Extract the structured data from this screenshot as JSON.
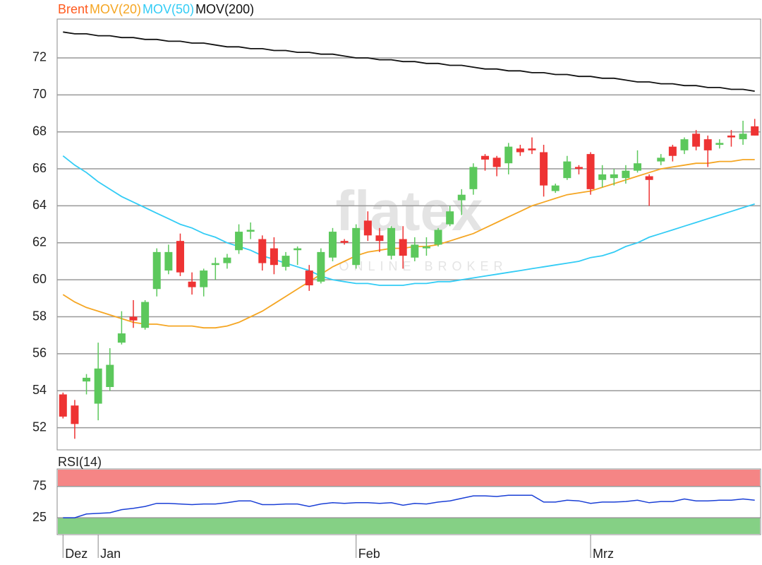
{
  "chart_data": [
    {
      "type": "candlestick",
      "name": "Brent",
      "name_color": "#ff5a1e",
      "up_color": "#5cc85c",
      "down_color": "#ee3333",
      "watermark": {
        "brand": "flatex",
        "tagline": "ONLINE BROKER"
      },
      "categories": [
        "Dez",
        null,
        null,
        "Jan",
        null,
        null,
        null,
        null,
        null,
        null,
        null,
        null,
        null,
        null,
        null,
        null,
        null,
        null,
        null,
        null,
        null,
        null,
        null,
        null,
        null,
        "Feb",
        null,
        null,
        null,
        null,
        null,
        null,
        null,
        null,
        null,
        null,
        null,
        null,
        null,
        null,
        null,
        null,
        null,
        null,
        null,
        "Mrz",
        null,
        null,
        null,
        null,
        null,
        null,
        null,
        null,
        null,
        null,
        null,
        null,
        null,
        null
      ],
      "open": [
        53.8,
        53.2,
        54.5,
        53.3,
        54.2,
        56.6,
        58.0,
        57.4,
        59.5,
        60.5,
        62.1,
        59.9,
        59.6,
        60.8,
        60.9,
        61.6,
        62.6,
        62.2,
        61.7,
        60.7,
        61.6,
        60.5,
        59.9,
        61.2,
        62.1,
        60.8,
        63.2,
        62.4,
        61.3,
        62.2,
        61.2,
        61.7,
        61.9,
        63.0,
        64.3,
        64.9,
        66.7,
        66.6,
        66.3,
        67.1,
        67.1,
        66.9,
        64.8,
        65.5,
        66.1,
        66.8,
        65.4,
        65.5,
        65.5,
        65.9,
        65.6,
        66.4,
        67.2,
        67.0,
        67.9,
        67.6,
        67.3,
        67.8,
        67.6,
        68.3
      ],
      "high": [
        53.9,
        53.5,
        54.9,
        56.6,
        56.3,
        58.3,
        58.9,
        58.9,
        61.7,
        61.9,
        62.5,
        60.4,
        60.6,
        61.2,
        61.4,
        63.0,
        63.1,
        62.4,
        62.3,
        61.5,
        61.8,
        60.8,
        61.7,
        62.8,
        62.2,
        63.0,
        63.7,
        62.8,
        62.9,
        62.9,
        62.3,
        62.3,
        62.8,
        64.0,
        64.9,
        66.3,
        66.8,
        66.7,
        67.4,
        67.3,
        67.7,
        67.3,
        65.2,
        66.7,
        66.2,
        66.9,
        66.2,
        66.0,
        66.2,
        67.0,
        65.7,
        66.8,
        67.3,
        67.7,
        68.1,
        67.8,
        67.6,
        68.1,
        68.6,
        68.7
      ],
      "low": [
        52.5,
        51.4,
        53.8,
        52.4,
        54.0,
        56.5,
        57.4,
        57.3,
        59.1,
        60.3,
        60.2,
        59.2,
        59.1,
        60.0,
        60.6,
        61.4,
        62.2,
        60.5,
        60.3,
        60.5,
        60.8,
        59.4,
        59.8,
        61.0,
        61.9,
        60.6,
        62.1,
        61.5,
        61.1,
        60.6,
        61.0,
        61.3,
        61.8,
        62.9,
        63.5,
        64.6,
        65.9,
        65.6,
        65.7,
        66.7,
        66.8,
        64.5,
        64.7,
        65.4,
        65.7,
        64.6,
        65.0,
        65.1,
        65.2,
        65.8,
        64.0,
        66.2,
        66.4,
        66.8,
        67.0,
        66.1,
        67.1,
        67.2,
        67.3,
        67.8
      ],
      "close": [
        52.6,
        52.2,
        54.7,
        55.2,
        55.4,
        57.1,
        57.8,
        58.8,
        61.5,
        61.5,
        60.4,
        59.6,
        60.5,
        60.9,
        61.2,
        62.6,
        62.7,
        60.9,
        60.8,
        61.3,
        61.7,
        59.7,
        61.5,
        62.6,
        62.0,
        62.8,
        62.4,
        62.1,
        62.8,
        61.3,
        61.9,
        61.8,
        62.7,
        63.7,
        64.6,
        66.1,
        66.5,
        66.1,
        67.2,
        66.9,
        67.0,
        65.1,
        65.1,
        66.4,
        66.0,
        64.9,
        65.7,
        65.7,
        65.9,
        66.3,
        65.4,
        66.6,
        66.7,
        67.6,
        67.2,
        67.0,
        67.4,
        67.7,
        67.9,
        67.8
      ],
      "overlays": [
        {
          "name": "MOV(20)",
          "color": "#f5a623",
          "values": [
            59.2,
            58.8,
            58.5,
            58.3,
            58.1,
            57.9,
            57.7,
            57.6,
            57.6,
            57.5,
            57.5,
            57.5,
            57.4,
            57.4,
            57.5,
            57.7,
            58.0,
            58.3,
            58.7,
            59.1,
            59.5,
            59.9,
            60.3,
            60.7,
            61.0,
            61.3,
            61.5,
            61.6,
            61.7,
            61.7,
            61.8,
            61.8,
            61.9,
            62.1,
            62.3,
            62.5,
            62.8,
            63.1,
            63.4,
            63.7,
            64.0,
            64.2,
            64.4,
            64.6,
            64.7,
            64.8,
            65.0,
            65.2,
            65.4,
            65.6,
            65.8,
            66.0,
            66.1,
            66.2,
            66.3,
            66.3,
            66.4,
            66.4,
            66.5,
            66.5
          ]
        },
        {
          "name": "MOV(50)",
          "color": "#33ccf5",
          "values": [
            66.7,
            66.2,
            65.8,
            65.3,
            64.9,
            64.5,
            64.2,
            63.9,
            63.6,
            63.3,
            63.0,
            62.8,
            62.5,
            62.3,
            62.0,
            61.8,
            61.6,
            61.3,
            61.1,
            60.9,
            60.7,
            60.5,
            60.2,
            60.0,
            59.9,
            59.8,
            59.8,
            59.7,
            59.7,
            59.7,
            59.8,
            59.8,
            59.9,
            59.9,
            60.0,
            60.1,
            60.2,
            60.3,
            60.4,
            60.5,
            60.6,
            60.7,
            60.8,
            60.9,
            61.0,
            61.2,
            61.3,
            61.5,
            61.8,
            62.0,
            62.3,
            62.5,
            62.7,
            62.9,
            63.1,
            63.3,
            63.5,
            63.7,
            63.9,
            64.1
          ]
        },
        {
          "name": "MOV(200)",
          "color": "#111111",
          "values": [
            73.4,
            73.3,
            73.3,
            73.2,
            73.2,
            73.1,
            73.1,
            73.0,
            73.0,
            72.9,
            72.9,
            72.8,
            72.8,
            72.7,
            72.6,
            72.6,
            72.5,
            72.5,
            72.4,
            72.4,
            72.3,
            72.3,
            72.2,
            72.2,
            72.1,
            72.0,
            72.0,
            71.9,
            71.9,
            71.8,
            71.8,
            71.7,
            71.7,
            71.6,
            71.6,
            71.5,
            71.4,
            71.4,
            71.3,
            71.3,
            71.2,
            71.2,
            71.1,
            71.1,
            71.0,
            71.0,
            70.9,
            70.9,
            70.8,
            70.7,
            70.7,
            70.6,
            70.6,
            70.5,
            70.5,
            70.4,
            70.4,
            70.3,
            70.3,
            70.2
          ]
        }
      ],
      "ylim": [
        50.8,
        74.1
      ],
      "yticks": [
        52,
        54,
        56,
        58,
        60,
        62,
        64,
        66,
        68,
        70,
        72
      ],
      "grid": true
    },
    {
      "type": "line",
      "series": [
        {
          "name": "RSI(14)",
          "color": "#1a3fd6",
          "values": [
            25,
            25,
            31,
            32,
            33,
            38,
            40,
            43,
            48,
            48,
            47,
            46,
            47,
            47,
            49,
            52,
            52,
            46,
            46,
            47,
            47,
            43,
            47,
            49,
            48,
            49,
            49,
            48,
            49,
            45,
            48,
            47,
            50,
            52,
            56,
            60,
            60,
            59,
            61,
            61,
            61,
            50,
            50,
            53,
            52,
            48,
            50,
            50,
            51,
            53,
            49,
            51,
            51,
            55,
            52,
            52,
            53,
            53,
            55,
            53
          ]
        }
      ],
      "overbought": {
        "value": 75,
        "color": "#f58585"
      },
      "oversold": {
        "value": 25,
        "color": "#85d085"
      },
      "ylim": [
        -2,
        103
      ],
      "yticks": [
        25,
        75
      ],
      "grid": true
    }
  ]
}
